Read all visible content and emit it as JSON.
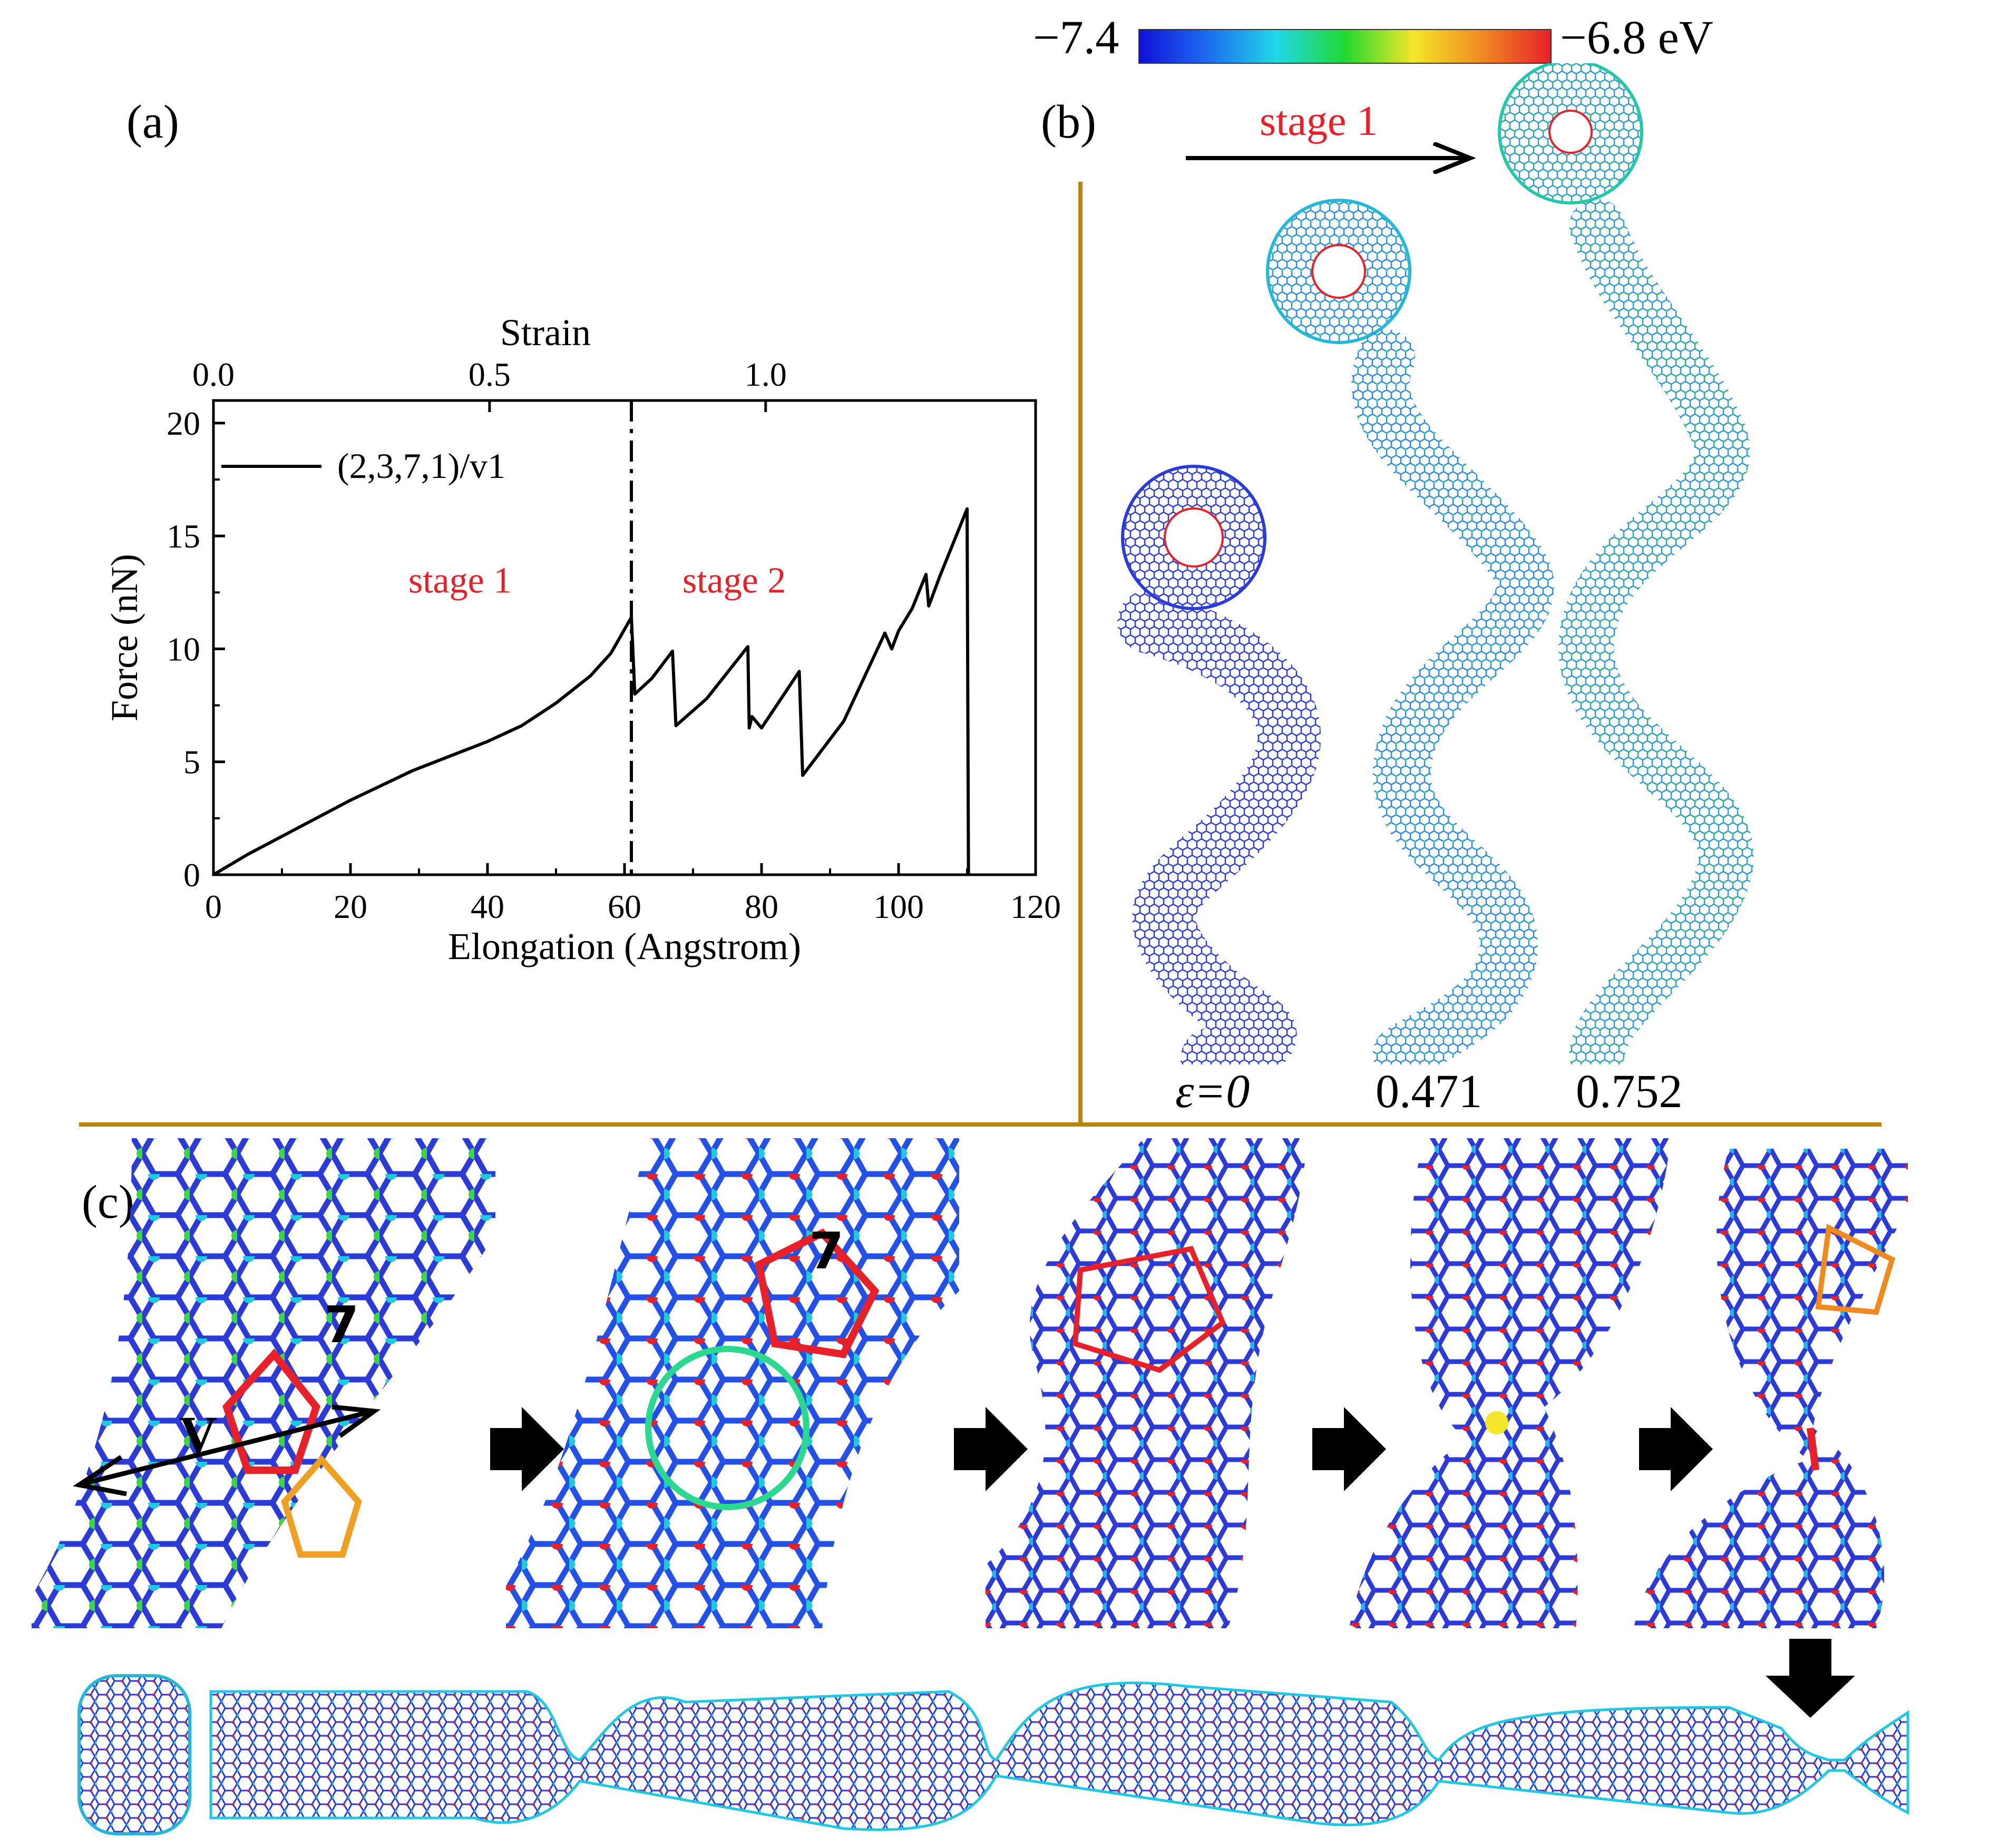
{
  "panels": {
    "a": {
      "label": "(a)"
    },
    "b": {
      "label": "(b)",
      "arrow_label": "stage 1",
      "strain_labels": [
        "ε=0",
        "0.471",
        "0.752"
      ]
    },
    "c": {
      "label": "(c)",
      "defect_labels": [
        "7",
        "7"
      ],
      "vacancy_label": "V"
    }
  },
  "colorbar": {
    "min_label": "−7.4",
    "max_label": "−6.8 eV",
    "stops": [
      "#1010d8",
      "#1e6cf0",
      "#20d8e8",
      "#22d830",
      "#f4e62a",
      "#f08a20",
      "#e8202a"
    ]
  },
  "colors": {
    "accent_divider": "#b8860b",
    "stage_text": "#e8202a",
    "atom_blue": "#2c3ad8",
    "atom_red": "#e8202a",
    "atom_cyan": "#22c8d8",
    "atom_green": "#3ad840"
  },
  "chart_data": {
    "type": "line",
    "xlabel": "Elongation (Angstrom)",
    "ylabel": "Force (nN)",
    "top_axis_label": "Strain",
    "xlim": [
      0,
      120
    ],
    "ylim": [
      0,
      21
    ],
    "x_ticks": [
      0,
      20,
      40,
      60,
      80,
      100,
      120
    ],
    "y_ticks": [
      0,
      5,
      10,
      15,
      20
    ],
    "top_ticks": [
      "0.0",
      "0.5",
      "1.0"
    ],
    "top_tick_elongation": [
      0,
      40.3,
      80.6
    ],
    "legend": "(2,3,7,1)/v1",
    "stage_divider_x": 61,
    "annotations": [
      {
        "text": "stage 1",
        "x": 36,
        "y": 12.5
      },
      {
        "text": "stage 2",
        "x": 76,
        "y": 12.5
      }
    ],
    "series": [
      {
        "name": "(2,3,7,1)/v1",
        "x": [
          0,
          5,
          10,
          20,
          29,
          40,
          45,
          50,
          55,
          58,
          61,
          61.5,
          64,
          67,
          67.5,
          72,
          78,
          78.2,
          78.6,
          80,
          85.5,
          86,
          92,
          98,
          99,
          100,
          102,
          104,
          104.4,
          106,
          110,
          110.2
        ],
        "y": [
          0,
          0.9,
          1.7,
          3.3,
          4.6,
          5.9,
          6.6,
          7.6,
          8.8,
          9.8,
          11.4,
          8.0,
          8.7,
          9.9,
          6.6,
          7.8,
          10.1,
          6.5,
          7.0,
          6.5,
          9.0,
          4.4,
          6.8,
          10.7,
          10.0,
          10.8,
          11.8,
          13.3,
          11.9,
          13.2,
          16.2,
          0
        ]
      }
    ]
  }
}
